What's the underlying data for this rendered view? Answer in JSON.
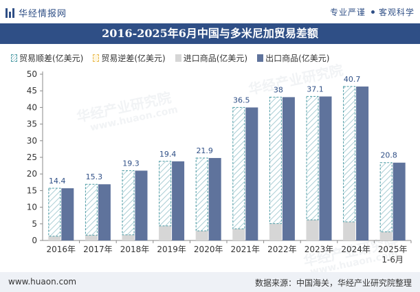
{
  "header": {
    "brand": "华经情报网",
    "tagline_left": "专业严谨",
    "tagline_right": "客观科学"
  },
  "footer": {
    "url": "www.huaon.com",
    "source": "数据来源：中国海关，华经产业研究院整理"
  },
  "watermark": {
    "text": "华经产业研究院",
    "url_text": "www.huaon.com"
  },
  "colors": {
    "export": "#5f739c",
    "import": "#d6d6d6",
    "trade_surplus_border": "#4a9aa3",
    "trade_deficit_border": "#e8b84a",
    "title_bg": "#2f4f86"
  },
  "chart_data": {
    "type": "bar",
    "title": "2016-2025年6月中国与多米尼加贸易差额",
    "legend": [
      "贸易顺差(亿美元)",
      "贸易逆差(亿美元)",
      "进口商品(亿美元)",
      "出口商品(亿美元)"
    ],
    "legend_position": "top-left",
    "categories": [
      "2016年",
      "2017年",
      "2018年",
      "2019年",
      "2020年",
      "2021年",
      "2022年",
      "2023年",
      "2024年",
      "2025年 1-6月"
    ],
    "series": [
      {
        "name": "贸易顺差(亿美元)",
        "values": [
          14.4,
          15.3,
          19.3,
          19.4,
          21.9,
          36.5,
          38,
          37.1,
          40.7,
          20.8
        ]
      },
      {
        "name": "进口商品(亿美元)",
        "values": [
          1.3,
          1.6,
          1.7,
          4.4,
          2.9,
          3.5,
          5.1,
          6.2,
          5.6,
          2.6
        ]
      },
      {
        "name": "出口商品(亿美元)",
        "values": [
          15.7,
          16.9,
          21.0,
          23.8,
          24.8,
          40.0,
          43.1,
          43.3,
          46.3,
          23.4
        ]
      }
    ],
    "ylim": [
      0,
      50
    ],
    "yticks": [
      0,
      5,
      10,
      15,
      20,
      25,
      30,
      35,
      40,
      45,
      50
    ],
    "grid": false
  }
}
